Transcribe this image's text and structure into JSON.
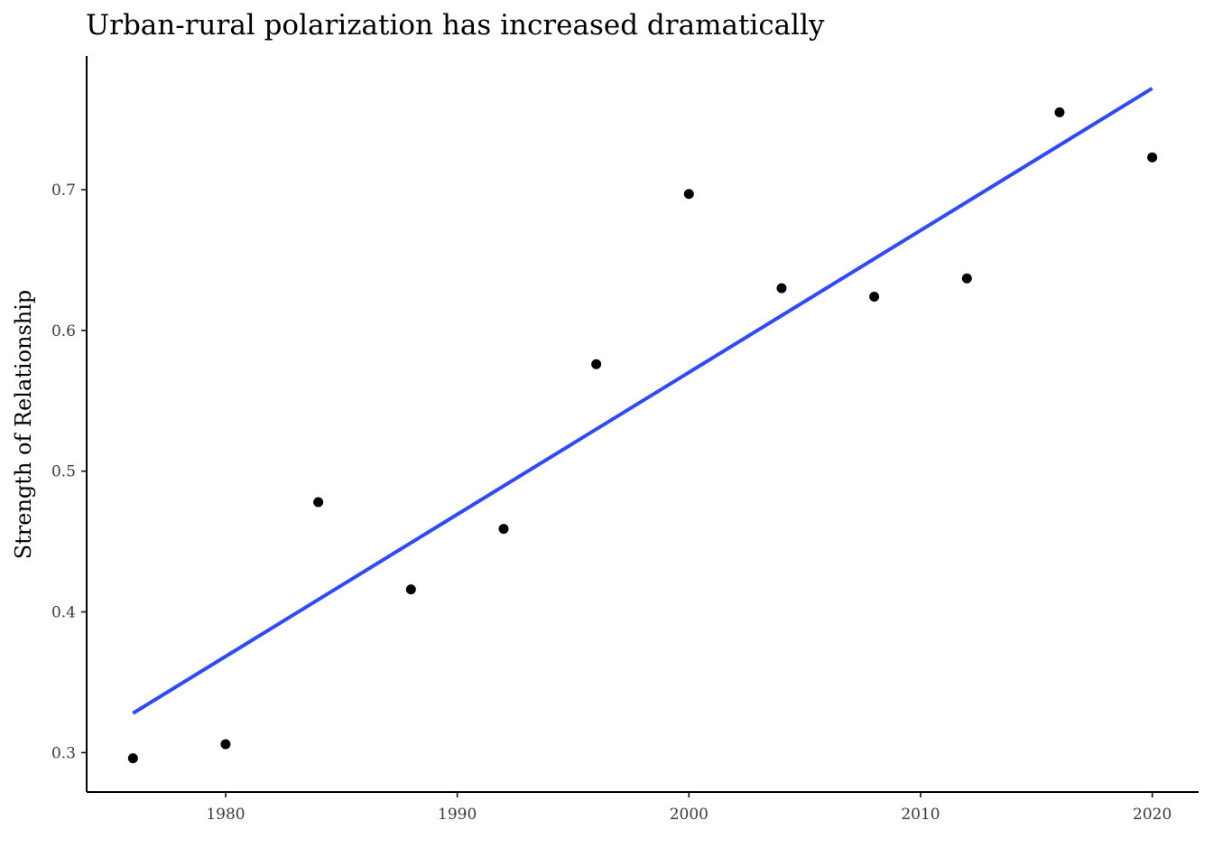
{
  "chart_data": {
    "type": "scatter",
    "title": "Urban-rural polarization has increased dramatically",
    "xlabel": "",
    "ylabel": "Strength of Relationship",
    "xlim": [
      1974,
      2022
    ],
    "ylim": [
      0.272,
      0.795
    ],
    "x_ticks": [
      1980,
      1990,
      2000,
      2010,
      2020
    ],
    "y_ticks": [
      0.3,
      0.4,
      0.5,
      0.6,
      0.7
    ],
    "y_tick_labels": [
      "0.3",
      "0.4",
      "0.5",
      "0.6",
      "0.7"
    ],
    "grid": false,
    "series": [
      {
        "points": [
          {
            "x": 1976,
            "y": 0.296
          },
          {
            "x": 1980,
            "y": 0.306
          },
          {
            "x": 1984,
            "y": 0.478
          },
          {
            "x": 1988,
            "y": 0.416
          },
          {
            "x": 1992,
            "y": 0.459
          },
          {
            "x": 1996,
            "y": 0.576
          },
          {
            "x": 2000,
            "y": 0.697
          },
          {
            "x": 2004,
            "y": 0.63
          },
          {
            "x": 2008,
            "y": 0.624
          },
          {
            "x": 2012,
            "y": 0.637
          },
          {
            "x": 2016,
            "y": 0.755
          },
          {
            "x": 2020,
            "y": 0.723
          }
        ],
        "color": "#000000"
      }
    ],
    "trend_line": {
      "x": [
        1976,
        2020
      ],
      "y": [
        0.328,
        0.772
      ],
      "color": "#2E4BF5"
    }
  }
}
